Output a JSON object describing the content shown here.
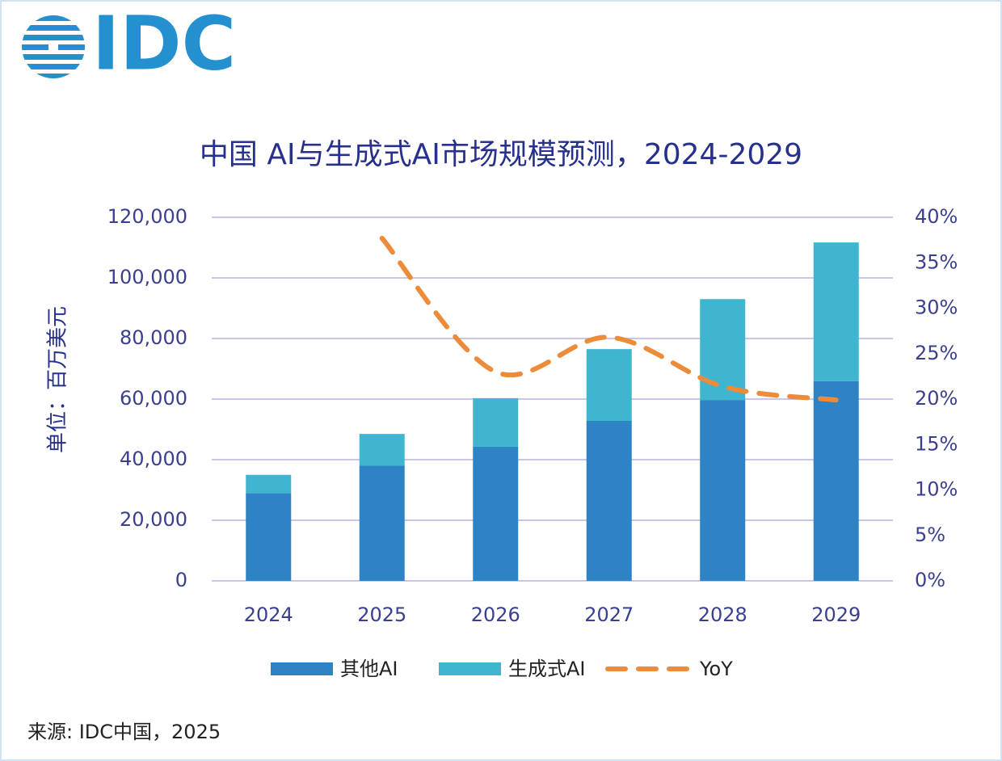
{
  "logo": "IDC",
  "chart_data": {
    "type": "bar",
    "title": "中国 AI与生成式AI市场规模预测，2024-2029",
    "ylabel": "单位：百万美元",
    "source": "来源: IDC中国，2025",
    "categories": [
      "2024",
      "2025",
      "2026",
      "2027",
      "2028",
      "2029"
    ],
    "series": [
      {
        "name": "其他AI",
        "type": "bar",
        "color": "#2e83c4",
        "values": [
          29000,
          38000,
          44300,
          52800,
          59700,
          65900
        ]
      },
      {
        "name": "生成式AI",
        "type": "bar",
        "color": "#3fb5cf",
        "values": [
          6000,
          10500,
          16000,
          23700,
          33300,
          45800
        ]
      },
      {
        "name": "YoY",
        "type": "line",
        "axis": "y2",
        "color": "#ec8b3a",
        "values": [
          null,
          37.7,
          23.0,
          26.8,
          21.4,
          19.9
        ]
      }
    ],
    "ylim": [
      0,
      120000
    ],
    "yticks": [
      0,
      {
        "value": 20000,
        "label": "20,000"
      },
      {
        "value": 40000,
        "label": "40,000"
      },
      {
        "value": 60000,
        "label": "60,000"
      },
      {
        "value": 80000,
        "label": "80,000"
      },
      {
        "value": 100000,
        "label": "100,000"
      },
      {
        "value": 120000,
        "label": "120,000"
      }
    ],
    "y2lim": [
      0,
      40
    ],
    "y2ticks": [
      {
        "value": 0,
        "label": "0%"
      },
      {
        "value": 5,
        "label": "5%"
      },
      {
        "value": 10,
        "label": "10%"
      },
      {
        "value": 15,
        "label": "15%"
      },
      {
        "value": 20,
        "label": "20%"
      },
      {
        "value": 25,
        "label": "25%"
      },
      {
        "value": 30,
        "label": "30%"
      },
      {
        "value": 35,
        "label": "35%"
      },
      {
        "value": 40,
        "label": "40%"
      }
    ],
    "grid": true
  }
}
